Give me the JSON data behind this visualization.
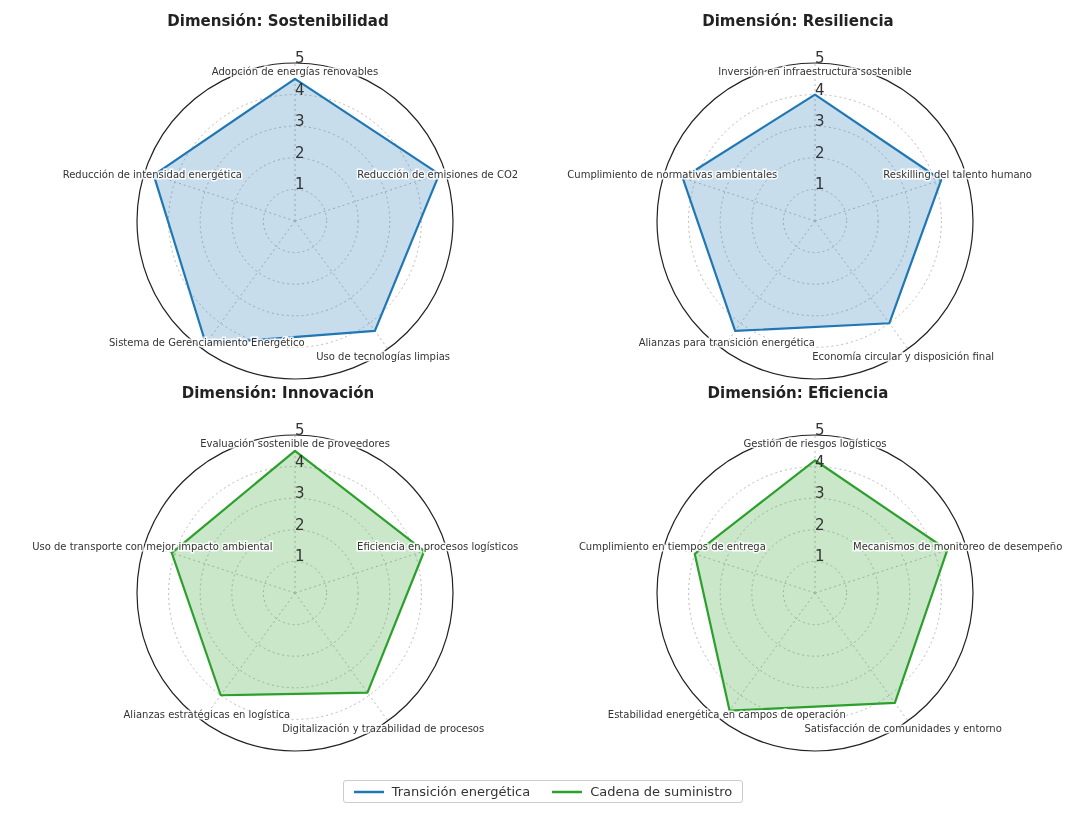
{
  "chart_data": [
    {
      "type": "radar",
      "title": "Dimensión: Sostenibilidad",
      "categories": [
        "Adopción de energías renovables",
        "Reducción de emisiones de CO2",
        "Uso de tecnologías limpias",
        "Sistema de Gerenciamiento Energético",
        "Reducción de intensidad energética"
      ],
      "series": [
        {
          "name": "Transición energética",
          "color": "#1f77b4",
          "values": [
            4.5,
            4.8,
            4.3,
            4.8,
            4.7
          ]
        }
      ],
      "ylim": [
        0,
        5
      ],
      "yticks": [
        1,
        2,
        3,
        4,
        5
      ],
      "grid": true,
      "legend": "bottom"
    },
    {
      "type": "radar",
      "title": "Dimensión: Resiliencia",
      "categories": [
        "Inversión en infraestructura sostenible",
        "Reskilling del talento humano",
        "Economía circular y disposición final",
        "Alianzas para transición energética",
        "Cumplimiento de normativas ambientales"
      ],
      "series": [
        {
          "name": "Transición energética",
          "color": "#1f77b4",
          "values": [
            4.0,
            4.2,
            4.0,
            4.3,
            4.4
          ]
        }
      ],
      "ylim": [
        0,
        5
      ],
      "yticks": [
        1,
        2,
        3,
        4,
        5
      ],
      "grid": true,
      "legend": "bottom"
    },
    {
      "type": "radar",
      "title": "Dimensión: Innovación",
      "categories": [
        "Evaluación sostenible de proveedores",
        "Eficiencia en procesos logísticos",
        "Digitalización y trazabilidad de procesos",
        "Alianzas estratégicas en logística",
        "Uso de transporte con mejor impacto ambiental"
      ],
      "series": [
        {
          "name": "Cadena de suministro",
          "color": "#2ca02c",
          "values": [
            4.5,
            4.3,
            3.9,
            4.0,
            4.1
          ]
        }
      ],
      "ylim": [
        0,
        5
      ],
      "yticks": [
        1,
        2,
        3,
        4,
        5
      ],
      "grid": true,
      "legend": "bottom"
    },
    {
      "type": "radar",
      "title": "Dimensión: Eficiencia",
      "categories": [
        "Gestión de riesgos logísticos",
        "Mecanismos de monitoreo de desempeño",
        "Satisfacción de comunidades y entorno",
        "Estabilidad energética en campos de operación",
        "Cumplimiento en tiempos de entrega"
      ],
      "series": [
        {
          "name": "Cadena de suministro",
          "color": "#2ca02c",
          "values": [
            4.2,
            4.4,
            4.3,
            4.6,
            4.0
          ]
        }
      ],
      "ylim": [
        0,
        5
      ],
      "yticks": [
        1,
        2,
        3,
        4,
        5
      ],
      "grid": true,
      "legend": "bottom"
    }
  ]
}
